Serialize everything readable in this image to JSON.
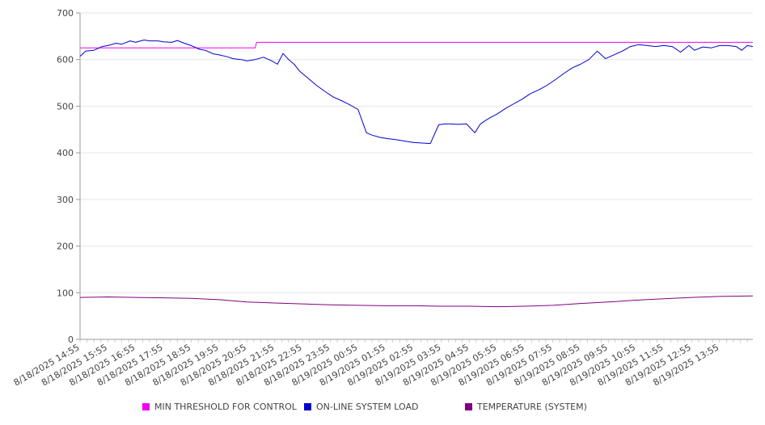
{
  "chart_data": {
    "type": "line",
    "title": "",
    "xlabel": "",
    "ylabel": "",
    "ylim": [
      0,
      700
    ],
    "y_ticks": [
      0,
      100,
      200,
      300,
      400,
      500,
      600,
      700
    ],
    "x_tick_labels": [
      "8/18/2025 14:55",
      "8/18/2025 15:55",
      "8/18/2025 16:55",
      "8/18/2025 17:55",
      "8/18/2025 18:55",
      "8/18/2025 19:55",
      "8/18/2025 20:55",
      "8/18/2025 21:55",
      "8/18/2025 22:55",
      "8/18/2025 23:55",
      "8/19/2025 00:55",
      "8/19/2025 01:55",
      "8/19/2025 02:55",
      "8/19/2025 03:55",
      "8/19/2025 04:55",
      "8/19/2025 05:55",
      "8/19/2025 06:55",
      "8/19/2025 07:55",
      "8/19/2025 08:55",
      "8/19/2025 09:55",
      "8/19/2025 10:55",
      "8/19/2025 11:55",
      "8/19/2025 12:55",
      "8/19/2025 13:55"
    ],
    "x_hours_range": [
      0,
      24.2
    ],
    "grid": "horizontal",
    "legend_position": "bottom",
    "series": [
      {
        "name": "MIN THRESHOLD FOR CONTROL",
        "color": "#ee00ee",
        "x": [
          0,
          6.3,
          6.35,
          24.2
        ],
        "y": [
          625,
          625,
          637,
          637
        ]
      },
      {
        "name": "ON-LINE SYSTEM LOAD",
        "color": "#0000cc",
        "x": [
          0,
          0.2,
          0.5,
          0.8,
          1.0,
          1.3,
          1.5,
          1.8,
          2.0,
          2.3,
          2.5,
          2.8,
          3.0,
          3.3,
          3.5,
          3.8,
          4.0,
          4.3,
          4.5,
          4.8,
          5.0,
          5.3,
          5.5,
          5.8,
          6.0,
          6.3,
          6.6,
          6.9,
          7.1,
          7.3,
          7.5,
          7.7,
          7.9,
          8.2,
          8.5,
          8.8,
          9.1,
          9.4,
          9.7,
          10.0,
          10.3,
          10.5,
          10.8,
          11.1,
          11.4,
          11.7,
          12.0,
          12.3,
          12.6,
          12.9,
          13.1,
          13.3,
          13.6,
          13.9,
          14.2,
          14.4,
          14.6,
          14.8,
          15.0,
          15.3,
          15.6,
          15.9,
          16.2,
          16.5,
          16.8,
          17.1,
          17.4,
          17.7,
          18.0,
          18.3,
          18.6,
          18.9,
          19.2,
          19.5,
          19.8,
          20.1,
          20.4,
          20.7,
          21.0,
          21.3,
          21.6,
          21.9,
          22.1,
          22.4,
          22.7,
          23.0,
          23.3,
          23.6,
          23.8,
          24.0,
          24.2
        ],
        "y": [
          607,
          618,
          620,
          628,
          630,
          635,
          633,
          640,
          637,
          642,
          640,
          640,
          638,
          637,
          641,
          634,
          630,
          622,
          620,
          612,
          610,
          606,
          602,
          600,
          597,
          600,
          605,
          597,
          590,
          613,
          600,
          590,
          575,
          560,
          545,
          532,
          520,
          512,
          503,
          493,
          443,
          438,
          433,
          430,
          428,
          425,
          422,
          421,
          420,
          460,
          462,
          462,
          461,
          462,
          443,
          462,
          470,
          477,
          483,
          495,
          505,
          515,
          527,
          535,
          545,
          557,
          570,
          582,
          590,
          600,
          618,
          602,
          610,
          618,
          628,
          632,
          630,
          628,
          630,
          628,
          616,
          630,
          620,
          627,
          625,
          630,
          630,
          628,
          620,
          630,
          628
        ]
      },
      {
        "name": "TEMPERATURE (SYSTEM)",
        "color": "#800080",
        "x": [
          0,
          1,
          2,
          3,
          4,
          5,
          6,
          7,
          8,
          9,
          10,
          11,
          12,
          13,
          14,
          15,
          16,
          17,
          18,
          19,
          20,
          21,
          22,
          23,
          24.2
        ],
        "y": [
          90,
          91,
          90,
          89,
          88,
          85,
          80,
          78,
          76,
          74,
          73,
          72,
          72,
          71,
          71,
          70,
          71,
          73,
          77,
          80,
          84,
          87,
          90,
          92,
          93
        ]
      }
    ]
  }
}
